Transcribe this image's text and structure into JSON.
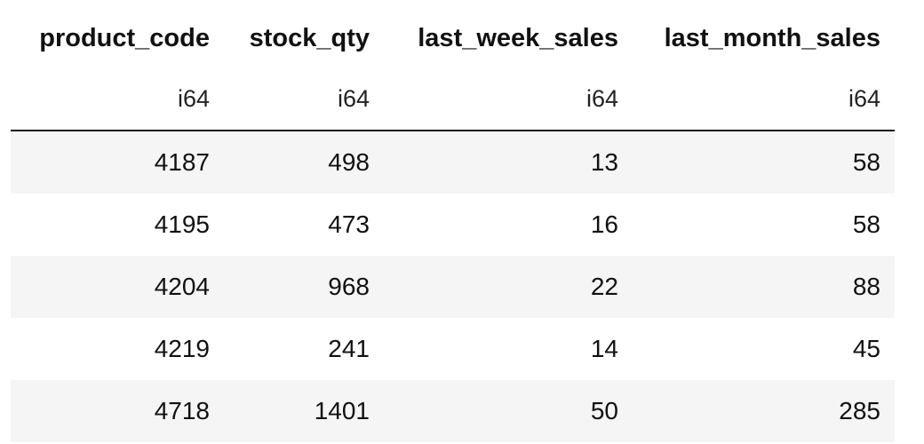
{
  "table": {
    "columns": [
      {
        "name": "product_code",
        "dtype": "i64"
      },
      {
        "name": "stock_qty",
        "dtype": "i64"
      },
      {
        "name": "last_week_sales",
        "dtype": "i64"
      },
      {
        "name": "last_month_sales",
        "dtype": "i64"
      }
    ],
    "rows": [
      [
        "4187",
        "498",
        "13",
        "58"
      ],
      [
        "4195",
        "473",
        "16",
        "58"
      ],
      [
        "4204",
        "968",
        "22",
        "88"
      ],
      [
        "4219",
        "241",
        "14",
        "45"
      ],
      [
        "4718",
        "1401",
        "50",
        "285"
      ]
    ]
  }
}
